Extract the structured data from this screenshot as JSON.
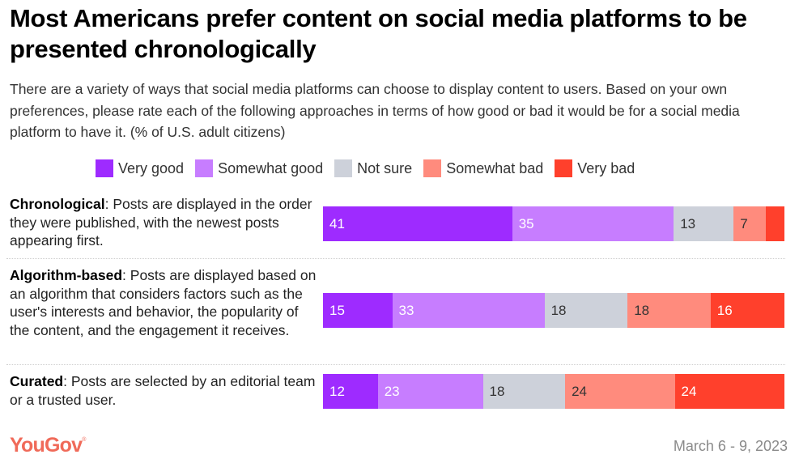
{
  "header": {
    "title": "Most Americans prefer content on social media platforms to be presented chronologically",
    "subtitle": "There are a variety of ways that social media platforms can choose to display content to users. Based on your own preferences, please rate each of the following approaches in terms of how good or bad it would be for a social media platform to have it. (% of U.S. adult citizens)"
  },
  "footer": {
    "logo": "YouGov",
    "logo_mark": "®",
    "date": "March 6 - 9, 2023"
  },
  "chart_data": {
    "type": "bar",
    "orientation": "horizontal",
    "stacked": true,
    "title": "Most Americans prefer content on social media platforms to be presented chronologically",
    "xlabel": "",
    "ylabel": "",
    "xlim": [
      0,
      100
    ],
    "legend_position": "top",
    "legend": [
      {
        "name": "Very good",
        "color": "#9e2bff"
      },
      {
        "name": "Somewhat good",
        "color": "#c77dff"
      },
      {
        "name": "Not sure",
        "color": "#cdd1da"
      },
      {
        "name": "Somewhat bad",
        "color": "#ff8b7d"
      },
      {
        "name": "Very bad",
        "color": "#ff402c"
      }
    ],
    "categories": [
      {
        "name": "Chronological",
        "description": ": Posts are displayed in the order they were published, with the newest posts appearing first."
      },
      {
        "name": "Algorithm-based",
        "description": ": Posts are displayed based on an algorithm that considers factors such as the user's interests and behavior, the popularity of the content, and the engagement it receives."
      },
      {
        "name": "Curated",
        "description": ": Posts are selected by an editorial team or a trusted user."
      }
    ],
    "series": [
      {
        "name": "Very good",
        "values": [
          41,
          15,
          12
        ],
        "labels": [
          "41",
          "15",
          "12"
        ],
        "label_color": "#ffffff"
      },
      {
        "name": "Somewhat good",
        "values": [
          35,
          33,
          23
        ],
        "labels": [
          "35",
          "33",
          "23"
        ],
        "label_color": "#ffffff"
      },
      {
        "name": "Not sure",
        "values": [
          13,
          18,
          18
        ],
        "labels": [
          "13",
          "18",
          "18"
        ],
        "label_color": "#333333"
      },
      {
        "name": "Somewhat bad",
        "values": [
          7,
          18,
          24
        ],
        "labels": [
          "7",
          "18",
          "24"
        ],
        "label_color": "#333333"
      },
      {
        "name": "Very bad",
        "values": [
          4,
          16,
          24
        ],
        "labels": [
          "",
          "16",
          "24"
        ],
        "label_color": "#ffffff"
      }
    ]
  }
}
